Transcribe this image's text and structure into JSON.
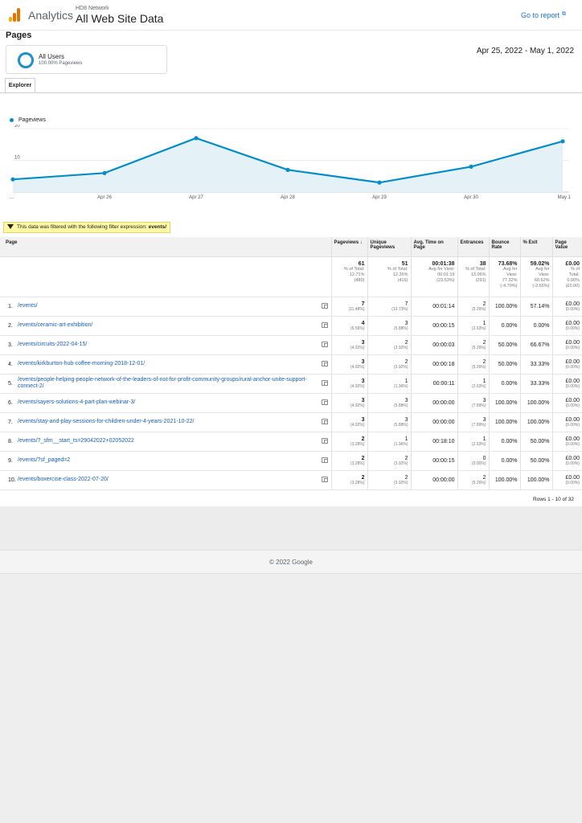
{
  "header": {
    "brand": "Analytics",
    "account": "HD8 Network",
    "property": "All Web Site Data",
    "goto_report": "Go to report",
    "logo_colors": [
      "#f9ab00",
      "#e37400",
      "#e37400"
    ]
  },
  "page_title": "Pages",
  "segment": {
    "name": "All Users",
    "sub": "100.00% Pageviews",
    "ring_color": "#1f8fc7"
  },
  "date_range": "Apr 25, 2022 - May 1, 2022",
  "tab": "Explorer",
  "chart_data": {
    "type": "area",
    "series": [
      {
        "name": "Pageviews",
        "values": [
          4,
          6,
          17,
          7,
          3,
          8,
          16
        ]
      }
    ],
    "x": [
      "...",
      "Apr 26",
      "Apr 27",
      "Apr 28",
      "Apr 29",
      "Apr 30",
      "May 1"
    ],
    "yticks": [
      10,
      20
    ],
    "ylim": [
      0,
      20
    ],
    "line_color": "#058dc7",
    "fill_color": "#e4f2f8",
    "grid": true
  },
  "filter": {
    "text": "This data was filtered with the following filter expression:",
    "expression": "events/"
  },
  "table": {
    "headers": {
      "page": "Page",
      "pageviews": "Pageviews",
      "sort_indicator": "↓",
      "unique": "Unique Pageviews",
      "avg_time": "Avg. Time on Page",
      "entrances": "Entrances",
      "bounce": "Bounce Rate",
      "exit": "% Exit",
      "value": "Page Value"
    },
    "totals": {
      "pageviews": "61",
      "pageviews_sub1": "% of Total:",
      "pageviews_sub2": "12.71%",
      "pageviews_sub3": "(480)",
      "unique": "51",
      "unique_sub1": "% of Total:",
      "unique_sub2": "12.26%",
      "unique_sub3": "(416)",
      "avg_time": "00:01:38",
      "avg_time_sub1": "Avg for View:",
      "avg_time_sub2": "00:01:19",
      "avg_time_sub3": "(23.53%)",
      "entrances": "38",
      "entrances_sub1": "% of Total:",
      "entrances_sub2": "13.06%",
      "entrances_sub3": "(291)",
      "bounce": "73.68%",
      "bounce_sub1": "Avg for",
      "bounce_sub2": "View:",
      "bounce_sub3": "77.32%",
      "bounce_sub4": "(-4.70%)",
      "exit": "59.02%",
      "exit_sub1": "Avg for",
      "exit_sub2": "View:",
      "exit_sub3": "60.62%",
      "exit_sub4": "(-2.65%)",
      "value": "£0.00",
      "value_sub1": "% of",
      "value_sub2": "Total:",
      "value_sub3": "0.00%",
      "value_sub4": "(£0.00)"
    },
    "rows": [
      {
        "num": "1.",
        "page": "/events/",
        "pageviews": "7",
        "pv_pct": "(11.48%)",
        "unique": "7",
        "u_pct": "(13.73%)",
        "avg_time": "00:01:14",
        "entrances": "2",
        "e_pct": "(5.26%)",
        "bounce": "100.00%",
        "exit": "57.14%",
        "value": "£0.00",
        "v_pct": "(0.00%)"
      },
      {
        "num": "2.",
        "page": "/events/ceramic-art-exhibition/",
        "pageviews": "4",
        "pv_pct": "(6.56%)",
        "unique": "3",
        "u_pct": "(5.88%)",
        "avg_time": "00:00:15",
        "entrances": "1",
        "e_pct": "(2.63%)",
        "bounce": "0.00%",
        "exit": "0.00%",
        "value": "£0.00",
        "v_pct": "(0.00%)"
      },
      {
        "num": "3.",
        "page": "/events/circuits-2022-04-15/",
        "pageviews": "3",
        "pv_pct": "(4.92%)",
        "unique": "2",
        "u_pct": "(3.92%)",
        "avg_time": "00:00:03",
        "entrances": "2",
        "e_pct": "(5.26%)",
        "bounce": "50.00%",
        "exit": "66.67%",
        "value": "£0.00",
        "v_pct": "(0.00%)"
      },
      {
        "num": "4.",
        "page": "/events/kirkburton-hub-coffee-morning-2018-12-01/",
        "pageviews": "3",
        "pv_pct": "(4.92%)",
        "unique": "2",
        "u_pct": "(3.92%)",
        "avg_time": "00:00:18",
        "entrances": "2",
        "e_pct": "(5.26%)",
        "bounce": "50.00%",
        "exit": "33.33%",
        "value": "£0.00",
        "v_pct": "(0.00%)"
      },
      {
        "num": "5.",
        "page": "/events/people-helping-people-network-of-the-leaders-of-not-for-profit-community-groups/rural-anchor-unite-support-connect-2/",
        "pageviews": "3",
        "pv_pct": "(4.92%)",
        "unique": "1",
        "u_pct": "(1.96%)",
        "avg_time": "00:00:11",
        "entrances": "1",
        "e_pct": "(2.63%)",
        "bounce": "0.00%",
        "exit": "33.33%",
        "value": "£0.00",
        "v_pct": "(0.00%)"
      },
      {
        "num": "6.",
        "page": "/events/sayers-solutions-4-part-plan-webinar-3/",
        "pageviews": "3",
        "pv_pct": "(4.92%)",
        "unique": "3",
        "u_pct": "(5.88%)",
        "avg_time": "00:00:00",
        "entrances": "3",
        "e_pct": "(7.89%)",
        "bounce": "100.00%",
        "exit": "100.00%",
        "value": "£0.00",
        "v_pct": "(0.00%)"
      },
      {
        "num": "7.",
        "page": "/events/stay-and-play-sessions-for-children-under-4-years-2021-10-22/",
        "pageviews": "3",
        "pv_pct": "(4.92%)",
        "unique": "3",
        "u_pct": "(5.88%)",
        "avg_time": "00:00:00",
        "entrances": "3",
        "e_pct": "(7.89%)",
        "bounce": "100.00%",
        "exit": "100.00%",
        "value": "£0.00",
        "v_pct": "(0.00%)"
      },
      {
        "num": "8.",
        "page": "/events/?_sfm__start_ts=29042022+02052022",
        "pageviews": "2",
        "pv_pct": "(3.28%)",
        "unique": "1",
        "u_pct": "(1.96%)",
        "avg_time": "00:18:10",
        "entrances": "1",
        "e_pct": "(2.63%)",
        "bounce": "0.00%",
        "exit": "50.00%",
        "value": "£0.00",
        "v_pct": "(0.00%)"
      },
      {
        "num": "9.",
        "page": "/events/?sf_paged=2",
        "pageviews": "2",
        "pv_pct": "(3.28%)",
        "unique": "2",
        "u_pct": "(3.92%)",
        "avg_time": "00:00:15",
        "entrances": "0",
        "e_pct": "(0.00%)",
        "bounce": "0.00%",
        "exit": "50.00%",
        "value": "£0.00",
        "v_pct": "(0.00%)"
      },
      {
        "num": "10.",
        "page": "/events/boxercise-class-2022-07-20/",
        "pageviews": "2",
        "pv_pct": "(3.28%)",
        "unique": "2",
        "u_pct": "(3.92%)",
        "avg_time": "00:00:00",
        "entrances": "2",
        "e_pct": "(5.26%)",
        "bounce": "100.00%",
        "exit": "100.00%",
        "value": "£0.00",
        "v_pct": "(0.00%)"
      }
    ],
    "rows_info": "Rows 1 - 10 of 32"
  },
  "footer": "© 2022 Google"
}
